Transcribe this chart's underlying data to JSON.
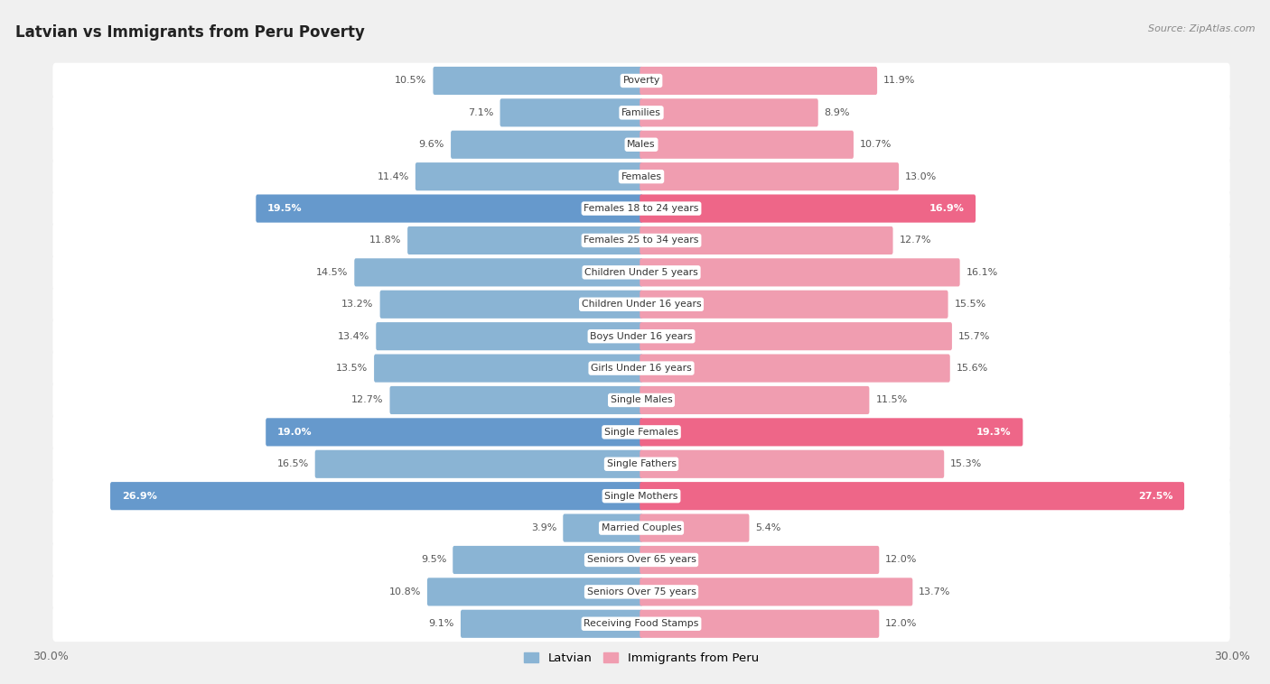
{
  "title": "Latvian vs Immigrants from Peru Poverty",
  "source": "Source: ZipAtlas.com",
  "categories": [
    "Poverty",
    "Families",
    "Males",
    "Females",
    "Females 18 to 24 years",
    "Females 25 to 34 years",
    "Children Under 5 years",
    "Children Under 16 years",
    "Boys Under 16 years",
    "Girls Under 16 years",
    "Single Males",
    "Single Females",
    "Single Fathers",
    "Single Mothers",
    "Married Couples",
    "Seniors Over 65 years",
    "Seniors Over 75 years",
    "Receiving Food Stamps"
  ],
  "latvian": [
    10.5,
    7.1,
    9.6,
    11.4,
    19.5,
    11.8,
    14.5,
    13.2,
    13.4,
    13.5,
    12.7,
    19.0,
    16.5,
    26.9,
    3.9,
    9.5,
    10.8,
    9.1
  ],
  "peru": [
    11.9,
    8.9,
    10.7,
    13.0,
    16.9,
    12.7,
    16.1,
    15.5,
    15.7,
    15.6,
    11.5,
    19.3,
    15.3,
    27.5,
    5.4,
    12.0,
    13.7,
    12.0
  ],
  "latvian_color": "#8ab4d4",
  "peru_color": "#f09db0",
  "latvian_highlight_color": "#6699cc",
  "peru_highlight_color": "#ee6688",
  "highlight_rows": [
    4,
    11,
    13
  ],
  "background_color": "#f0f0f0",
  "row_bg_color": "#ffffff",
  "axis_limit": 30.0,
  "legend_latvian": "Latvian",
  "legend_peru": "Immigrants from Peru"
}
